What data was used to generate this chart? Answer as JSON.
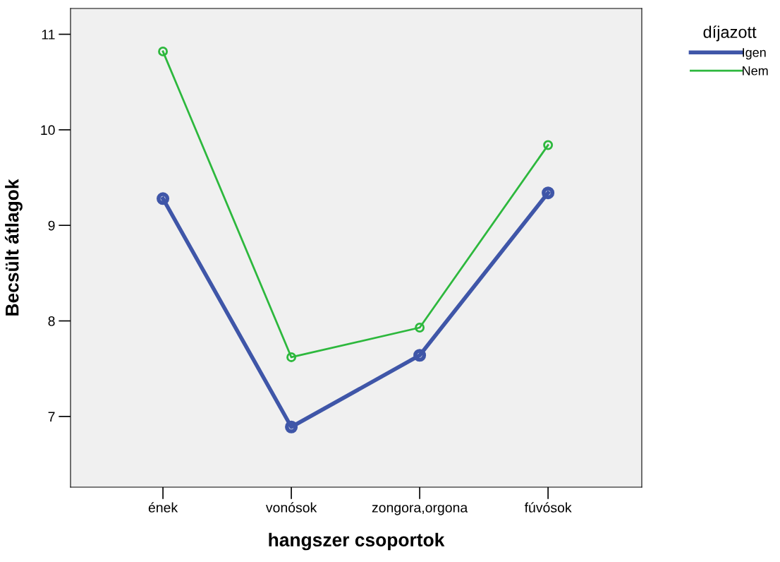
{
  "chart_data": {
    "type": "line",
    "xlabel": "hangszer csoportok",
    "ylabel": "Becsült átlagok",
    "legend_title": "díjazott",
    "categories": [
      "ének",
      "vonósok",
      "zongora,orgona",
      "fúvósok"
    ],
    "series": [
      {
        "name": "Igen",
        "color": "#3f56a8",
        "values": [
          9.28,
          6.89,
          7.64,
          9.34
        ]
      },
      {
        "name": "Nem",
        "color": "#2db83d",
        "values": [
          10.82,
          7.62,
          7.93,
          9.84
        ]
      }
    ],
    "ylim": [
      6.26,
      11.27
    ],
    "yticks": [
      7,
      8,
      9,
      10,
      11
    ],
    "marker": "circle",
    "grid": false,
    "legend": "top right"
  }
}
